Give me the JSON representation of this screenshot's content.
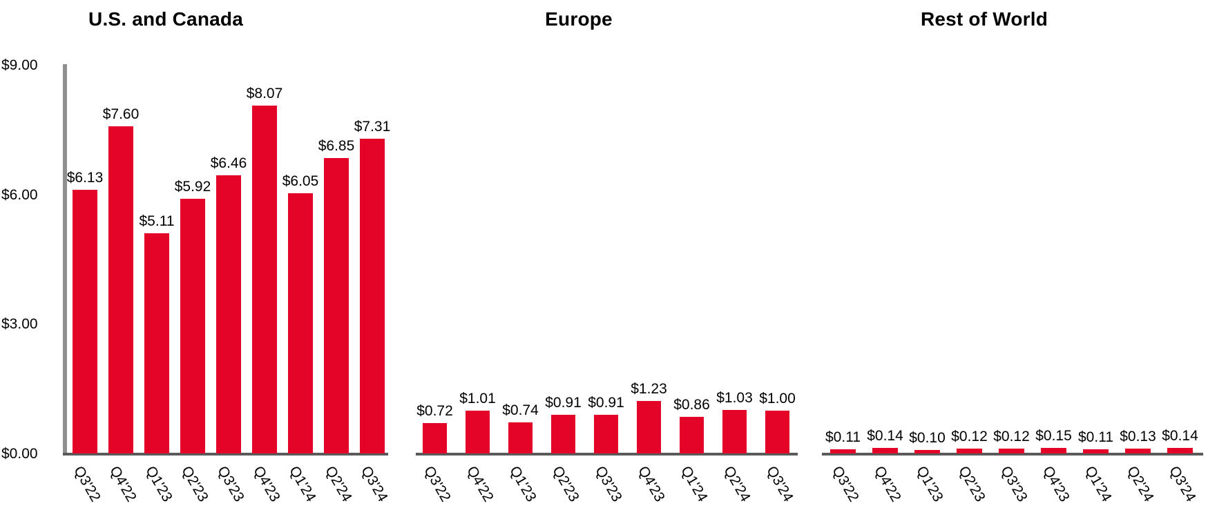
{
  "colors": {
    "bar": "#E40428",
    "y_axis_line": "#8F8F8F",
    "baseline": "#5A5A5A",
    "text": "#000000"
  },
  "chart_data": [
    {
      "type": "bar",
      "title": "U.S. and Canada",
      "categories": [
        "Q3'22",
        "Q4'22",
        "Q1'23",
        "Q2'23",
        "Q3'23",
        "Q4'23",
        "Q1'24",
        "Q2'24",
        "Q3'24"
      ],
      "values": [
        6.13,
        7.6,
        5.11,
        5.92,
        6.46,
        8.07,
        6.05,
        6.85,
        7.31
      ],
      "bar_labels": [
        "$6.13",
        "$7.60",
        "$5.11",
        "$5.92",
        "$6.46",
        "$8.07",
        "$6.05",
        "$6.85",
        "$7.31"
      ],
      "y_ticks": [
        "$9.00",
        "$6.00",
        "$3.00",
        "$0.00"
      ],
      "ylim": [
        0,
        9
      ],
      "grid": false,
      "legend": false,
      "xlabel": "",
      "ylabel": ""
    },
    {
      "type": "bar",
      "title": "Europe",
      "categories": [
        "Q3'22",
        "Q4'22",
        "Q1'23",
        "Q2'23",
        "Q3'23",
        "Q4'23",
        "Q1'24",
        "Q2'24",
        "Q3'24"
      ],
      "values": [
        0.72,
        1.01,
        0.74,
        0.91,
        0.91,
        1.23,
        0.86,
        1.03,
        1.0
      ],
      "bar_labels": [
        "$0.72",
        "$1.01",
        "$0.74",
        "$0.91",
        "$0.91",
        "$1.23",
        "$0.86",
        "$1.03",
        "$1.00"
      ],
      "y_ticks": [],
      "ylim": [
        0,
        9
      ],
      "grid": false,
      "legend": false,
      "xlabel": "",
      "ylabel": ""
    },
    {
      "type": "bar",
      "title": "Rest of World",
      "categories": [
        "Q3'22",
        "Q4'22",
        "Q1'23",
        "Q2'23",
        "Q3'23",
        "Q4'23",
        "Q1'24",
        "Q2'24",
        "Q3'24"
      ],
      "values": [
        0.11,
        0.14,
        0.1,
        0.12,
        0.12,
        0.15,
        0.11,
        0.13,
        0.14
      ],
      "bar_labels": [
        "$0.11",
        "$0.14",
        "$0.10",
        "$0.12",
        "$0.12",
        "$0.15",
        "$0.11",
        "$0.13",
        "$0.14"
      ],
      "y_ticks": [],
      "ylim": [
        0,
        9
      ],
      "grid": false,
      "legend": false,
      "xlabel": "",
      "ylabel": ""
    }
  ]
}
